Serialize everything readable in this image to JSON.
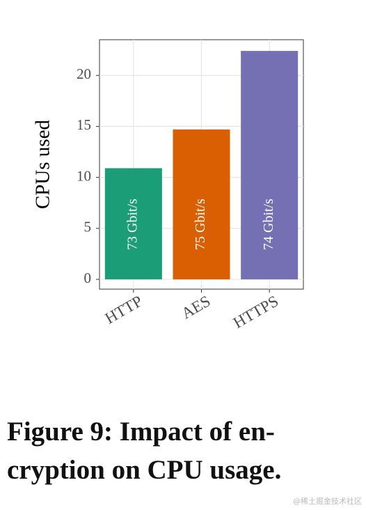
{
  "chart_data": {
    "type": "bar",
    "categories": [
      "HTTP",
      "AES",
      "HTTPS"
    ],
    "values": [
      10.9,
      14.7,
      22.4
    ],
    "colors": [
      "#1b9e77",
      "#d95f02",
      "#7570b3"
    ],
    "bar_labels": [
      "73 Gbit/s",
      "75 Gbit/s",
      "74 Gbit/s"
    ],
    "y_label": "CPUs used",
    "ylim": [
      -0.96,
      23.5
    ],
    "yticks": [
      0,
      5,
      10,
      15,
      20
    ],
    "grid": true
  },
  "caption": [
    "Figure 9: Impact of en-",
    "cryption on CPU usage."
  ],
  "watermark": "@稀土掘金技术社区"
}
